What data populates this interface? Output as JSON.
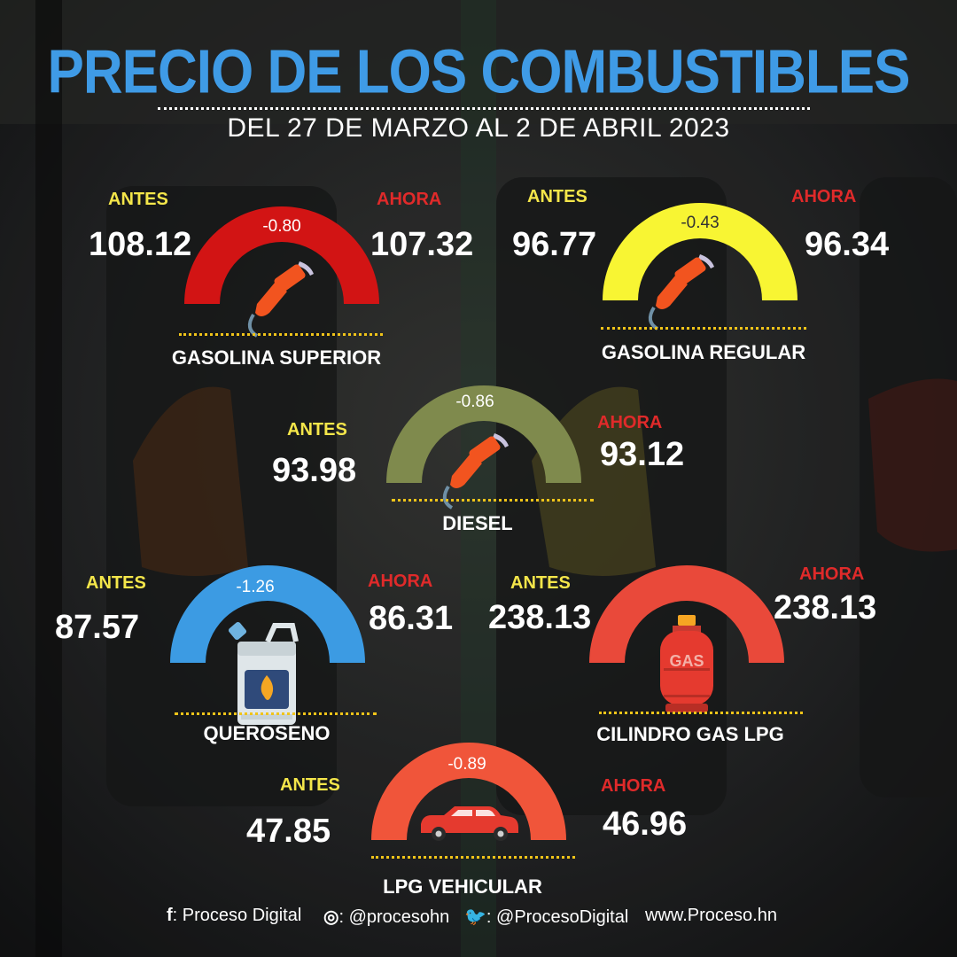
{
  "title": "PRECIO DE LOS COMBUSTIBLES",
  "subtitle": "DEL  27 DE MARZO AL 2 DE ABRIL 2023",
  "colors": {
    "title_blue": "#3f9be6",
    "antes_yellow": "#f4e64a",
    "ahora_red": "#e02a2a",
    "rule_gold": "#f0c419"
  },
  "fuels": [
    {
      "name": "GASOLINA SUPERIOR",
      "antes_label": "ANTES",
      "ahora_label": "AHORA",
      "antes": "108.12",
      "ahora": "107.32",
      "delta": "-0.80",
      "gauge_color": "#d21414",
      "icon": "fuel-nozzle-icon"
    },
    {
      "name": "GASOLINA REGULAR",
      "antes_label": "ANTES",
      "ahora_label": "AHORA",
      "antes": "96.77",
      "ahora": "96.34",
      "delta": "-0.43",
      "gauge_color": "#f8f533",
      "icon": "fuel-nozzle-icon"
    },
    {
      "name": "DIESEL",
      "antes_label": "ANTES",
      "ahora_label": "AHORA",
      "antes": "93.98",
      "ahora": "93.12",
      "delta": "-0.86",
      "gauge_color": "#7f8a4d",
      "icon": "fuel-nozzle-icon"
    },
    {
      "name": "QUEROSENO",
      "antes_label": "ANTES",
      "ahora_label": "AHORA",
      "antes": "87.57",
      "ahora": "86.31",
      "delta": "-1.26",
      "gauge_color": "#3c9be3",
      "icon": "kerosene-jerrycan-icon"
    },
    {
      "name": "CILINDRO GAS LPG",
      "antes_label": "ANTES",
      "ahora_label": "AHORA",
      "antes": "238.13",
      "ahora": "238.13",
      "delta": "",
      "gauge_color": "#e9493a",
      "icon": "gas-cylinder-icon",
      "icon_text": "GAS"
    },
    {
      "name": "LPG VEHICULAR",
      "antes_label": "ANTES",
      "ahora_label": "AHORA",
      "antes": "47.85",
      "ahora": "46.96",
      "delta": "-0.89",
      "gauge_color": "#f0553a",
      "icon": "car-icon"
    }
  ],
  "footer": {
    "facebook_icon": "facebook-icon",
    "facebook": ": Proceso Digital",
    "instagram_icon": "instagram-icon",
    "instagram": ": @procesohn",
    "twitter_icon": "twitter-icon",
    "twitter": ": @ProcesoDigital",
    "website": "www.Proceso.hn"
  }
}
